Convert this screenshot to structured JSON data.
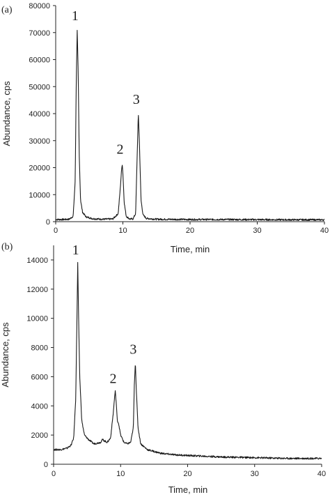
{
  "chart_data": [
    {
      "type": "line",
      "panel_label": "(a)",
      "xlabel": "Time, min",
      "ylabel": "Abundance, cps",
      "xlim": [
        0,
        40
      ],
      "ylim": [
        0,
        80000
      ],
      "xticks": [
        0,
        10,
        20,
        30,
        40
      ],
      "yticks": [
        0,
        10000,
        20000,
        30000,
        40000,
        50000,
        60000,
        70000,
        80000
      ],
      "grid": false,
      "baseline": 800,
      "peaks": [
        {
          "label": "1",
          "x": 3.2,
          "y": 71000
        },
        {
          "label": "2",
          "x": 9.9,
          "y": 21500
        },
        {
          "label": "3",
          "x": 12.3,
          "y": 40000
        }
      ],
      "series": [
        {
          "x": [
            0,
            1,
            2,
            2.6,
            2.9,
            3.05,
            3.2,
            3.35,
            3.5,
            3.7,
            4.0,
            4.5,
            5.5,
            7,
            8.5,
            9.3,
            9.6,
            9.8,
            9.9,
            10.0,
            10.2,
            10.5,
            11,
            11.5,
            11.9,
            12.1,
            12.3,
            12.45,
            12.7,
            13,
            13.5,
            15,
            20,
            25,
            30,
            35,
            40
          ],
          "y": [
            800,
            800,
            900,
            2000,
            15000,
            50000,
            71000,
            55000,
            25000,
            8000,
            3500,
            1800,
            1100,
            900,
            1000,
            3000,
            12000,
            19000,
            21500,
            18000,
            7000,
            2000,
            1000,
            1000,
            3000,
            22000,
            40000,
            30000,
            8000,
            2500,
            1200,
            900,
            800,
            800,
            750,
            700,
            700
          ]
        }
      ]
    },
    {
      "type": "line",
      "panel_label": "(b)",
      "xlabel": "Time, min",
      "ylabel": "Abundance, cps",
      "xlim": [
        0,
        40
      ],
      "ylim": [
        0,
        15000
      ],
      "xticks": [
        0,
        10,
        20,
        30,
        40
      ],
      "yticks": [
        0,
        2000,
        4000,
        6000,
        8000,
        10000,
        12000,
        14000
      ],
      "grid": false,
      "baseline": 400,
      "peaks": [
        {
          "label": "1",
          "x": 3.6,
          "y": 13800
        },
        {
          "label": "2",
          "x": 9.2,
          "y": 5000
        },
        {
          "label": "3",
          "x": 12.2,
          "y": 7000
        }
      ],
      "series": [
        {
          "x": [
            0,
            1,
            2,
            2.6,
            3.0,
            3.3,
            3.5,
            3.6,
            3.75,
            3.9,
            4.2,
            4.6,
            5.2,
            6,
            7,
            7.3,
            7.6,
            8,
            8.5,
            8.9,
            9.1,
            9.2,
            9.35,
            9.5,
            9.7,
            10,
            10.5,
            11,
            11.5,
            11.9,
            12.05,
            12.2,
            12.35,
            12.6,
            13,
            14,
            16,
            18,
            20,
            25,
            30,
            35,
            40
          ],
          "y": [
            1000,
            1000,
            1100,
            1300,
            1800,
            4500,
            10500,
            13800,
            9500,
            6000,
            3000,
            2000,
            1700,
            1400,
            1500,
            1700,
            1600,
            1500,
            1800,
            3500,
            4600,
            5000,
            4200,
            3000,
            2800,
            2000,
            1500,
            1400,
            1500,
            2500,
            5500,
            7000,
            5000,
            2500,
            1400,
            1000,
            750,
            650,
            600,
            500,
            450,
            400,
            400
          ]
        }
      ]
    }
  ]
}
